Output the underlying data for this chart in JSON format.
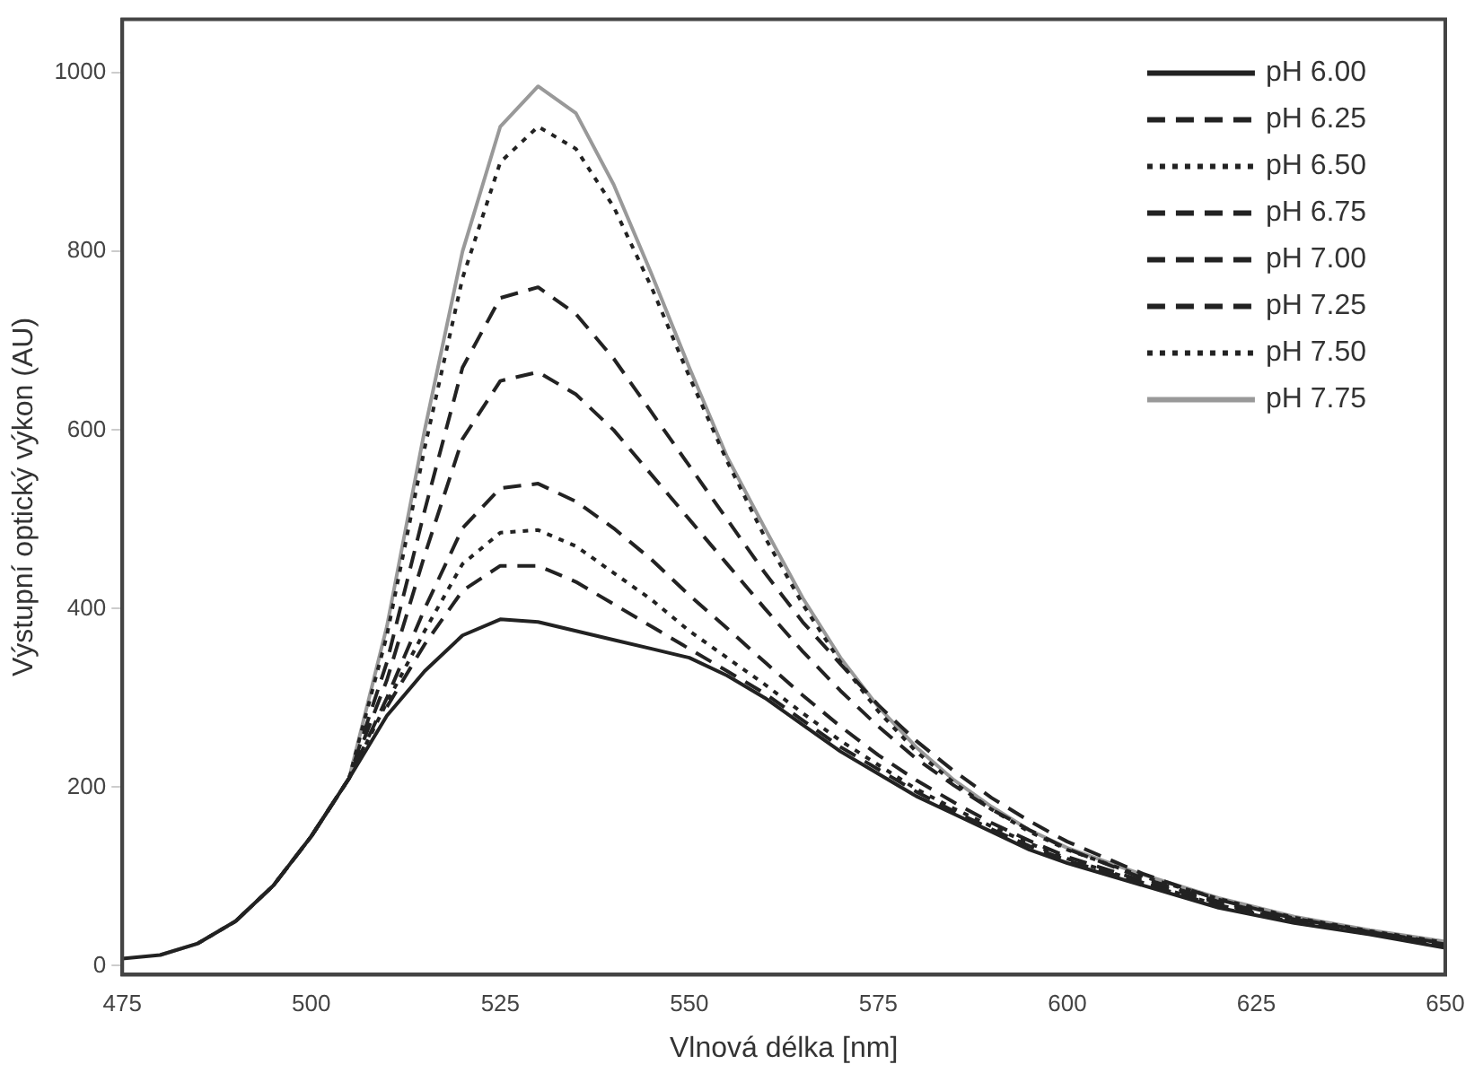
{
  "chart_data": {
    "type": "line",
    "xlabel": "Vlnová délka [nm]",
    "ylabel": "Výstupní optický výkon (AU)",
    "x": [
      475,
      480,
      485,
      490,
      495,
      500,
      505,
      510,
      515,
      520,
      525,
      530,
      535,
      540,
      545,
      550,
      555,
      560,
      565,
      570,
      575,
      580,
      585,
      590,
      595,
      600,
      610,
      620,
      630,
      640,
      650
    ],
    "xlim": [
      475,
      650
    ],
    "xticks": [
      475,
      500,
      525,
      550,
      575,
      600,
      625,
      650
    ],
    "ylim": [
      -10,
      1060
    ],
    "yticks": [
      0,
      200,
      400,
      600,
      800,
      1000
    ],
    "grid": false,
    "legend": "top right",
    "series": [
      {
        "name": "pH 6.00",
        "color": "#222222",
        "line_style": "solid",
        "values": [
          8,
          12,
          25,
          50,
          90,
          145,
          210,
          280,
          330,
          370,
          388,
          385,
          375,
          365,
          355,
          345,
          325,
          300,
          270,
          240,
          215,
          190,
          170,
          150,
          130,
          115,
          90,
          65,
          48,
          35,
          20
        ]
      },
      {
        "name": "pH 6.25",
        "color": "#222222",
        "line_style": "dashed",
        "values": [
          null,
          null,
          null,
          null,
          null,
          null,
          null,
          290,
          360,
          420,
          448,
          448,
          430,
          405,
          380,
          355,
          330,
          305,
          275,
          245,
          220,
          195,
          173,
          153,
          134,
          118,
          92,
          67,
          49,
          36,
          21
        ]
      },
      {
        "name": "pH 6.50",
        "color": "#222222",
        "line_style": "dotted",
        "values": [
          null,
          null,
          null,
          null,
          null,
          null,
          210,
          295,
          375,
          450,
          485,
          488,
          470,
          440,
          410,
          375,
          345,
          315,
          283,
          252,
          225,
          198,
          176,
          156,
          137,
          120,
          93,
          68,
          50,
          37,
          22
        ]
      },
      {
        "name": "pH 6.75",
        "color": "#222222",
        "line_style": "dashed",
        "values": [
          null,
          null,
          null,
          null,
          null,
          145,
          210,
          300,
          400,
          490,
          535,
          540,
          520,
          490,
          455,
          415,
          378,
          340,
          303,
          268,
          236,
          208,
          183,
          160,
          140,
          122,
          95,
          70,
          51,
          37,
          23
        ]
      },
      {
        "name": "pH 7.00",
        "color": "#222222",
        "line_style": "dashed",
        "values": [
          null,
          null,
          null,
          null,
          90,
          145,
          210,
          320,
          460,
          590,
          655,
          665,
          640,
          600,
          550,
          500,
          450,
          400,
          352,
          308,
          268,
          232,
          202,
          175,
          152,
          131,
          98,
          72,
          52,
          38,
          24
        ]
      },
      {
        "name": "pH 7.25",
        "color": "#222222",
        "line_style": "dashed",
        "values": [
          null,
          null,
          null,
          50,
          90,
          145,
          210,
          340,
          510,
          670,
          748,
          760,
          730,
          680,
          620,
          560,
          500,
          440,
          385,
          338,
          292,
          252,
          218,
          188,
          162,
          139,
          103,
          74,
          53,
          38,
          25
        ]
      },
      {
        "name": "pH 7.50",
        "color": "#222222",
        "line_style": "dotted",
        "values": [
          null,
          null,
          25,
          50,
          90,
          145,
          210,
          370,
          580,
          770,
          900,
          940,
          915,
          850,
          760,
          660,
          565,
          480,
          405,
          340,
          285,
          240,
          205,
          175,
          150,
          130,
          100,
          75,
          54,
          39,
          26
        ]
      },
      {
        "name": "pH 7.75",
        "color": "#999999",
        "line_style": "solid",
        "values": [
          null,
          12,
          25,
          50,
          90,
          145,
          210,
          380,
          600,
          800,
          940,
          985,
          955,
          875,
          775,
          670,
          570,
          490,
          412,
          345,
          290,
          245,
          208,
          178,
          152,
          132,
          102,
          76,
          55,
          40,
          27
        ]
      }
    ]
  }
}
